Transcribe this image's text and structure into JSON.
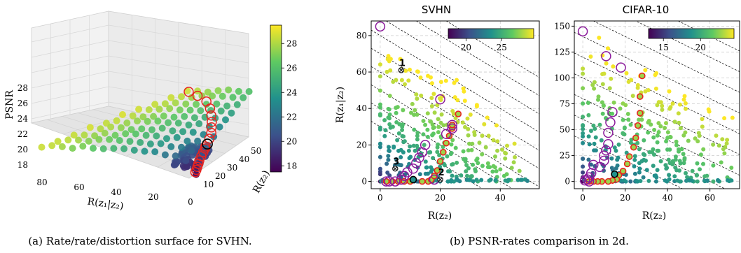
{
  "captions": {
    "a": "(a) Rate/rate/distortion surface for SVHN.",
    "b": "(b) PSNR-rates comparison in 2d."
  },
  "chart_data": [
    {
      "id": "surface3d",
      "type": "scatter",
      "title": "",
      "xlabel": "R(z₁|z₂)",
      "ylabel": "R(z₂)",
      "zlabel": "PSNR",
      "xticks": [
        "80",
        "60",
        "40",
        "20",
        "0"
      ],
      "yticks": [
        "10",
        "20",
        "30",
        "40",
        "50"
      ],
      "zticks": [
        "18",
        "20",
        "22",
        "24",
        "26",
        "28"
      ],
      "colorbar": {
        "ticks": [
          "18",
          "20",
          "22",
          "24",
          "26",
          "28"
        ],
        "min": 17.5,
        "max": 29.5
      },
      "highlight_black": {
        "x": 2,
        "y": 15,
        "z": 21.3
      },
      "highlight_red": [
        {
          "x": 1,
          "y": 1,
          "z": 17.9
        },
        {
          "x": 1,
          "y": 2,
          "z": 18.2
        },
        {
          "x": 1,
          "y": 3,
          "z": 18.6
        },
        {
          "x": 1,
          "y": 4,
          "z": 19.0
        },
        {
          "x": 1,
          "y": 5,
          "z": 19.5
        },
        {
          "x": 1,
          "y": 7,
          "z": 20.0
        },
        {
          "x": 1,
          "y": 9,
          "z": 20.5
        },
        {
          "x": 1,
          "y": 11,
          "z": 20.9
        },
        {
          "x": 2,
          "y": 13,
          "z": 21.1
        },
        {
          "x": 2,
          "y": 17,
          "z": 22.0
        },
        {
          "x": 2,
          "y": 19,
          "z": 22.8
        },
        {
          "x": 3,
          "y": 21,
          "z": 23.6
        },
        {
          "x": 4,
          "y": 23,
          "z": 24.4
        },
        {
          "x": 6,
          "y": 26,
          "z": 25.3
        },
        {
          "x": 9,
          "y": 30,
          "z": 26.3
        },
        {
          "x": 14,
          "y": 35,
          "z": 27.3
        },
        {
          "x": 22,
          "y": 40,
          "z": 28.3
        },
        {
          "x": 30,
          "y": 45,
          "z": 29.0
        }
      ]
    },
    {
      "id": "svhn",
      "type": "scatter",
      "title": "SVHN",
      "xlabel": "R(z₂)",
      "ylabel": "R(z₁|z₂)",
      "xlim": [
        -3,
        53
      ],
      "ylim": [
        -4,
        88
      ],
      "xticks": [
        0,
        20,
        40
      ],
      "yticks": [
        0,
        20,
        40,
        60,
        80
      ],
      "colorbar": {
        "ticks": [
          20,
          25
        ],
        "min": 17.5,
        "max": 29.5
      },
      "purple_circles": [
        {
          "x": 0,
          "y": 85
        },
        {
          "x": 20,
          "y": 45
        },
        {
          "x": 15,
          "y": 20
        },
        {
          "x": 14,
          "y": 16
        },
        {
          "x": 13,
          "y": 13
        },
        {
          "x": 12,
          "y": 10
        },
        {
          "x": 11,
          "y": 7
        },
        {
          "x": 9,
          "y": 5
        },
        {
          "x": 8,
          "y": 3
        },
        {
          "x": 7,
          "y": 1
        },
        {
          "x": 5,
          "y": 0
        },
        {
          "x": 3,
          "y": 0
        },
        {
          "x": 2,
          "y": 0
        },
        {
          "x": 24,
          "y": 31
        },
        {
          "x": 24,
          "y": 29
        },
        {
          "x": 22,
          "y": 26
        },
        {
          "x": 18,
          "y": 1
        }
      ],
      "red_circles": [
        {
          "x": 2,
          "y": 0
        },
        {
          "x": 4,
          "y": 0
        },
        {
          "x": 6,
          "y": 0
        },
        {
          "x": 8,
          "y": 0
        },
        {
          "x": 10,
          "y": 0
        },
        {
          "x": 14,
          "y": 0
        },
        {
          "x": 16,
          "y": 0
        },
        {
          "x": 17,
          "y": 1
        },
        {
          "x": 18,
          "y": 3
        },
        {
          "x": 19,
          "y": 6
        },
        {
          "x": 20,
          "y": 11
        },
        {
          "x": 21,
          "y": 16
        },
        {
          "x": 22,
          "y": 21
        },
        {
          "x": 23,
          "y": 25
        },
        {
          "x": 24,
          "y": 29
        },
        {
          "x": 24,
          "y": 31
        },
        {
          "x": 26,
          "y": 37
        }
      ],
      "black_circle": {
        "x": 11,
        "y": 1
      },
      "markers": [
        {
          "label": "1",
          "x": 7,
          "y": 61
        },
        {
          "label": "2",
          "x": 20,
          "y": 1
        },
        {
          "label": "3",
          "x": 5,
          "y": 7
        }
      ],
      "diagonals": [
        30,
        40,
        50,
        60,
        70,
        80,
        90,
        100,
        110
      ]
    },
    {
      "id": "cifar",
      "type": "scatter",
      "title": "CIFAR-10",
      "xlabel": "R(z₂)",
      "ylabel": "",
      "xlim": [
        -4,
        74
      ],
      "ylim": [
        -7,
        155
      ],
      "xticks": [
        0,
        20,
        40,
        60
      ],
      "yticks": [
        0,
        25,
        50,
        75,
        100,
        125,
        150
      ],
      "colorbar": {
        "ticks": [
          15,
          20
        ],
        "min": 13,
        "max": 24.5
      },
      "purple_circles": [
        {
          "x": 0,
          "y": 145
        },
        {
          "x": 11,
          "y": 121
        },
        {
          "x": 18,
          "y": 110
        },
        {
          "x": 14,
          "y": 67
        },
        {
          "x": 13,
          "y": 57
        },
        {
          "x": 12,
          "y": 47
        },
        {
          "x": 12,
          "y": 36
        },
        {
          "x": 11,
          "y": 30
        },
        {
          "x": 10,
          "y": 25
        },
        {
          "x": 10,
          "y": 20
        },
        {
          "x": 8,
          "y": 14
        },
        {
          "x": 5,
          "y": 16
        },
        {
          "x": 4,
          "y": 8
        },
        {
          "x": 3,
          "y": 4
        },
        {
          "x": 2,
          "y": 2
        },
        {
          "x": 1,
          "y": 1
        },
        {
          "x": 3,
          "y": 0
        }
      ],
      "red_circles": [
        {
          "x": 28,
          "y": 102
        },
        {
          "x": 27,
          "y": 82
        },
        {
          "x": 27,
          "y": 66
        },
        {
          "x": 26,
          "y": 54
        },
        {
          "x": 25,
          "y": 42
        },
        {
          "x": 24,
          "y": 33
        },
        {
          "x": 22,
          "y": 24
        },
        {
          "x": 21,
          "y": 17
        },
        {
          "x": 19,
          "y": 10
        },
        {
          "x": 17,
          "y": 6
        },
        {
          "x": 16,
          "y": 2
        },
        {
          "x": 14,
          "y": 1
        },
        {
          "x": 12,
          "y": 0
        },
        {
          "x": 9,
          "y": 0
        },
        {
          "x": 7,
          "y": 0
        },
        {
          "x": 5,
          "y": 0
        },
        {
          "x": 3,
          "y": 0
        }
      ],
      "black_circle": {
        "x": 15,
        "y": 7
      },
      "diagonals": [
        40,
        60,
        80,
        100,
        120,
        140,
        160,
        180,
        200
      ]
    }
  ]
}
